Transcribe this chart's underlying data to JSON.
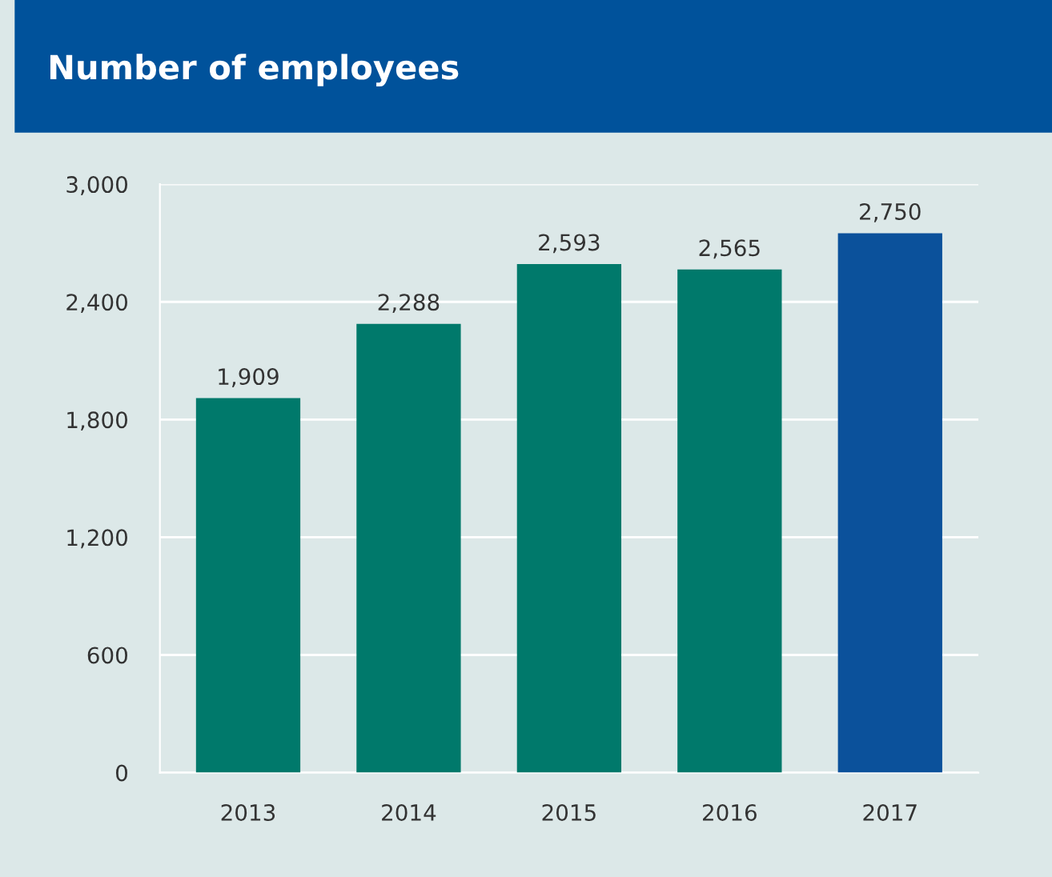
{
  "chart_data": {
    "type": "bar",
    "title": "Number of employees",
    "categories": [
      "2013",
      "2014",
      "2015",
      "2016",
      "2017"
    ],
    "values": [
      1909,
      2288,
      2593,
      2565,
      2750
    ],
    "colors": [
      "#00796b",
      "#00796b",
      "#00796b",
      "#00796b",
      "#0b519b"
    ],
    "ylim": [
      0,
      3000
    ],
    "yticks": [
      0,
      {
        "value": 600,
        "label": "600"
      },
      {
        "value": 1200,
        "label": "1,200"
      },
      {
        "value": 1800,
        "label": "1,800"
      },
      {
        "value": 2400,
        "label": "2,400"
      },
      {
        "value": 3000,
        "label": "3,000"
      }
    ],
    "value_labels": [
      "1,909",
      "2,288",
      "2,593",
      "2,565",
      "2,750"
    ],
    "grid": "y"
  }
}
